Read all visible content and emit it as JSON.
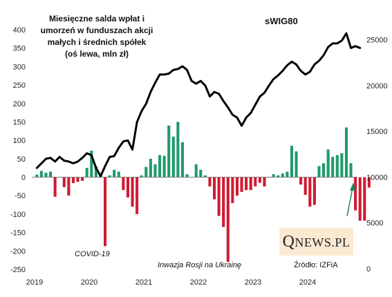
{
  "chart_data": {
    "type": "bar+line",
    "title_lines": [
      "Miesięczne salda wpłat i",
      "umorzeń w funduszach akcji",
      "małych i średnich spółek",
      "(oś lewa, mln zł)"
    ],
    "line_series_name": "sWIG80",
    "x_tick_labels": [
      "2019",
      "2020",
      "2021",
      "2022",
      "2023",
      "2024"
    ],
    "left_axis": {
      "ylim": [
        -250,
        400
      ],
      "ticks": [
        400,
        350,
        300,
        250,
        200,
        150,
        100,
        50,
        0,
        -50,
        -100,
        -150,
        -200,
        -250
      ]
    },
    "right_axis": {
      "ylim": [
        0,
        27000
      ],
      "ticks": [
        25000,
        20000,
        15000,
        10000,
        5000,
        0
      ]
    },
    "annotations": [
      "COVID-19",
      "Inwazja Rosji na Ukrainę"
    ],
    "source": "Źródło: IZFiA",
    "logo": "QNEWS.PL",
    "months_start": "2019-01",
    "bar_values": [
      7,
      17,
      12,
      15,
      -53,
      0,
      -27,
      -50,
      -16,
      -13,
      -10,
      25,
      72,
      30,
      10,
      -187,
      5,
      20,
      15,
      -35,
      -55,
      -80,
      -100,
      5,
      28,
      50,
      35,
      60,
      58,
      140,
      110,
      150,
      95,
      8,
      0,
      35,
      20,
      5,
      -25,
      -60,
      -105,
      -135,
      -230,
      -70,
      -50,
      -40,
      -35,
      -35,
      -25,
      -15,
      -25,
      0,
      8,
      5,
      10,
      15,
      85,
      70,
      -20,
      -48,
      -80,
      -75,
      30,
      38,
      75,
      55,
      60,
      65,
      135,
      38,
      -90,
      -118,
      -118,
      -28
    ],
    "line_values": [
      11000,
      11500,
      12000,
      12100,
      11700,
      12200,
      11800,
      11700,
      11500,
      11700,
      12100,
      12600,
      12400,
      11000,
      10100,
      11200,
      12200,
      12300,
      13200,
      13900,
      14000,
      13000,
      16000,
      17200,
      18000,
      19300,
      20300,
      21200,
      21200,
      21300,
      21700,
      21800,
      22100,
      21700,
      20500,
      20200,
      20500,
      20000,
      18800,
      19300,
      19100,
      18300,
      17600,
      16800,
      16500,
      15600,
      16500,
      17000,
      17900,
      18800,
      19200,
      20000,
      20700,
      21100,
      21600,
      22200,
      22600,
      22300,
      21600,
      21200,
      21500,
      22300,
      22700,
      23300,
      24200,
      24600,
      24600,
      24900,
      25700,
      24100,
      24300,
      24100
    ]
  }
}
